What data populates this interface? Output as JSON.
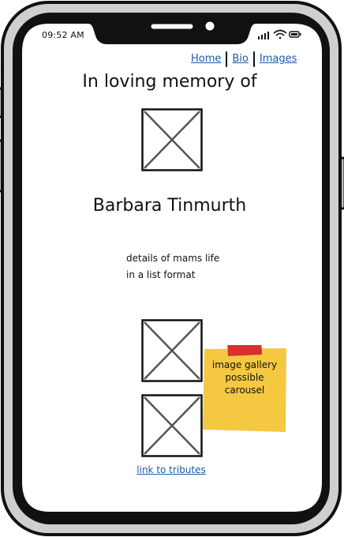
{
  "status_bar": {
    "time": "09:52 AM",
    "icons": [
      "signal-icon",
      "wifi-icon",
      "battery-icon"
    ]
  },
  "nav": {
    "home_label": "Home",
    "bio_label": "Bio",
    "images_label": "Images"
  },
  "main": {
    "heading": "In loving memory of",
    "name": "Barbara Tinmurth",
    "details_line1": "details of mams life",
    "details_line2": "in a list format",
    "tributes_link": "link to tributes"
  },
  "sticky_note": {
    "line1": "image gallery",
    "line2": "possible",
    "line3": "carousel"
  },
  "colors": {
    "link": "#1a5aa6",
    "sticky": "#f5c842",
    "tape": "#d6302f",
    "frame": "#111111",
    "bezel": "#cfcfcf"
  }
}
